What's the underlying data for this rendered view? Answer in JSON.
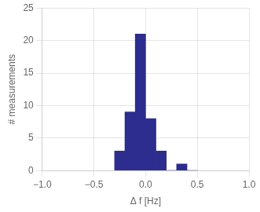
{
  "chart_data": {
    "type": "histogram",
    "bins": [
      -0.3,
      -0.2,
      -0.1,
      0.0,
      0.1,
      0.2,
      0.3,
      0.4,
      0.5
    ],
    "values": [
      3,
      9,
      21,
      8,
      3,
      0,
      1,
      0
    ],
    "color": "#2d2d8f",
    "xlabel": "Δ f [Hz]",
    "ylabel": "# measurements",
    "xlim": [
      -1,
      1
    ],
    "xticks": [
      {
        "value": -1,
        "label": "−1.0"
      },
      {
        "value": -0.5,
        "label": "−0.5"
      },
      {
        "value": 0,
        "label": "0.0"
      },
      {
        "value": 0.5,
        "label": "0.5"
      },
      {
        "value": 1,
        "label": "1.0"
      }
    ],
    "ylim": [
      0,
      25
    ],
    "yticks": [
      0,
      5,
      10,
      15,
      20,
      25
    ],
    "grid": true
  }
}
